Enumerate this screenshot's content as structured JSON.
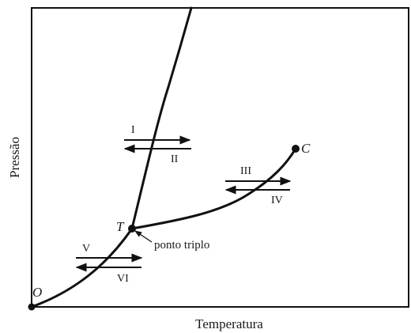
{
  "axes": {
    "xlabel": "Temperatura",
    "ylabel": "Pressão"
  },
  "points": {
    "origin": "O",
    "triple": "T",
    "critical": "C"
  },
  "annotations": {
    "triple_point": "ponto triplo"
  },
  "transitions": {
    "solid_liquid_forward": "I",
    "solid_liquid_back": "II",
    "liquid_gas_forward": "III",
    "liquid_gas_back": "IV",
    "solid_gas_forward": "V",
    "solid_gas_back": "VI"
  },
  "colors": {
    "ink": "#111111",
    "background": "#ffffff"
  }
}
